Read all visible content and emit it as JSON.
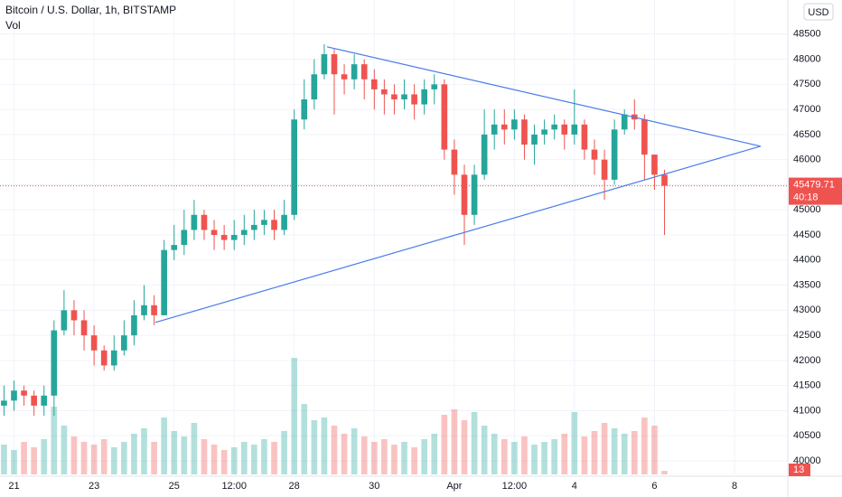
{
  "chart_data": {
    "type": "candlestick",
    "title": "Bitcoin / U.S. Dollar, 1h, BITSTAMP",
    "volume_title": "Vol",
    "currency": "USD",
    "last_price": 45479.71,
    "countdown": "40:18",
    "x": [
      20.75,
      21,
      21.25,
      21.5,
      21.75,
      22,
      22.25,
      22.5,
      22.75,
      23,
      23.25,
      23.5,
      23.75,
      24,
      24.25,
      24.5,
      24.75,
      25,
      25.25,
      25.5,
      25.75,
      26,
      26.25,
      26.5,
      26.75,
      27,
      27.25,
      27.5,
      27.75,
      28,
      28.25,
      28.5,
      28.75,
      29,
      29.25,
      29.5,
      29.75,
      30,
      30.25,
      30.5,
      30.75,
      31,
      31.25,
      31.5,
      31.75,
      32,
      32.25,
      32.5,
      32.75,
      33,
      33.25,
      33.5,
      33.75,
      34,
      34.25,
      34.5,
      34.75,
      35,
      35.25,
      35.5,
      35.75,
      36,
      36.25,
      36.5,
      36.75,
      37,
      37.25
    ],
    "open": [
      41100,
      41200,
      41400,
      41300,
      41100,
      41300,
      42600,
      43000,
      42800,
      42500,
      42200,
      41900,
      42200,
      42500,
      42900,
      43100,
      42900,
      44200,
      44300,
      44600,
      44900,
      44600,
      44500,
      44400,
      44500,
      44600,
      44700,
      44800,
      44600,
      44900,
      46800,
      47200,
      47700,
      48100,
      47700,
      47600,
      47900,
      47600,
      47400,
      47300,
      47200,
      47300,
      47100,
      47400,
      47500,
      46200,
      45700,
      44900,
      45700,
      46500,
      46700,
      46600,
      46800,
      46300,
      46500,
      46600,
      46700,
      46500,
      46700,
      46200,
      46000,
      45600,
      46600,
      46900,
      46800,
      46100,
      45700
    ],
    "high": [
      41500,
      41600,
      41500,
      41400,
      41500,
      42800,
      43400,
      43200,
      43000,
      42700,
      42300,
      42500,
      42800,
      43200,
      43500,
      43300,
      44400,
      44700,
      45000,
      45200,
      45000,
      44800,
      44700,
      44800,
      44900,
      45000,
      45000,
      45000,
      45200,
      47000,
      47600,
      48000,
      48300,
      48200,
      47900,
      48100,
      48000,
      47800,
      47600,
      47500,
      47600,
      47500,
      47600,
      47700,
      47600,
      46400,
      45900,
      45900,
      47000,
      47000,
      47000,
      47000,
      46900,
      46700,
      46800,
      46900,
      46800,
      47400,
      46800,
      46400,
      46200,
      46800,
      47000,
      47200,
      46900,
      46100,
      45800
    ],
    "low": [
      40900,
      41000,
      41100,
      40900,
      40900,
      40900,
      42500,
      42500,
      42200,
      41900,
      41800,
      41800,
      42100,
      42300,
      42800,
      42700,
      42900,
      44000,
      44100,
      44400,
      44400,
      44200,
      44200,
      44200,
      44300,
      44400,
      44500,
      44400,
      44500,
      44800,
      46600,
      47000,
      47600,
      46900,
      47300,
      47400,
      47200,
      47000,
      46900,
      46900,
      47000,
      46800,
      46900,
      47100,
      46000,
      45300,
      44300,
      44700,
      45600,
      46200,
      46300,
      46400,
      46000,
      45900,
      46300,
      46400,
      46200,
      46300,
      46000,
      45700,
      45200,
      45500,
      46500,
      46600,
      45600,
      45400,
      44500
    ],
    "close": [
      41200,
      41400,
      41300,
      41100,
      41300,
      42600,
      43000,
      42800,
      42500,
      42200,
      41900,
      42200,
      42500,
      42900,
      43100,
      42900,
      44200,
      44300,
      44600,
      44900,
      44600,
      44500,
      44400,
      44500,
      44600,
      44700,
      44800,
      44600,
      44900,
      46800,
      47200,
      47700,
      48100,
      47700,
      47600,
      47900,
      47600,
      47400,
      47300,
      47200,
      47300,
      47100,
      47400,
      47500,
      46200,
      45700,
      44900,
      45700,
      46500,
      46700,
      46600,
      46800,
      46300,
      46500,
      46600,
      46700,
      46500,
      46700,
      46200,
      46000,
      45600,
      46600,
      46900,
      46800,
      46100,
      45700,
      45479.71
    ],
    "volume": [
      110,
      90,
      120,
      100,
      130,
      250,
      180,
      140,
      120,
      110,
      130,
      100,
      120,
      150,
      170,
      120,
      210,
      160,
      140,
      190,
      130,
      110,
      90,
      100,
      120,
      110,
      130,
      120,
      160,
      430,
      260,
      200,
      210,
      180,
      150,
      170,
      140,
      120,
      130,
      110,
      120,
      100,
      130,
      150,
      220,
      240,
      200,
      230,
      180,
      150,
      130,
      120,
      140,
      110,
      120,
      130,
      150,
      230,
      140,
      160,
      190,
      170,
      150,
      160,
      210,
      180,
      13
    ],
    "up_color": "#26a69a",
    "down_color": "#ef5350",
    "line_color": "#4a7ce8",
    "trendlines": [
      {
        "x": [
          28.82,
          39.65
        ],
        "y": [
          48248,
          46268
        ]
      },
      {
        "x": [
          24.53,
          39.65
        ],
        "y": [
          42758,
          46268
        ]
      }
    ],
    "xlim": [
      20.65,
      40.33
    ],
    "ylim": [
      39730,
      49180
    ],
    "vlim": [
      0,
      1750
    ],
    "xticks": [
      21,
      23,
      25,
      {
        "value": 26.5,
        "label": "12:00"
      },
      28,
      30,
      {
        "value": 32,
        "label": "Apr"
      },
      {
        "value": 33.5,
        "label": "12:00"
      },
      {
        "value": 35,
        "label": "4"
      },
      {
        "value": 37,
        "label": "6"
      },
      {
        "value": 39,
        "label": "8"
      }
    ],
    "yticks": [
      40000,
      40500,
      41000,
      41500,
      42000,
      42500,
      43000,
      43500,
      44000,
      44500,
      45000,
      45500,
      46000,
      46500,
      47000,
      47500,
      48000,
      48500
    ],
    "grid": true
  }
}
